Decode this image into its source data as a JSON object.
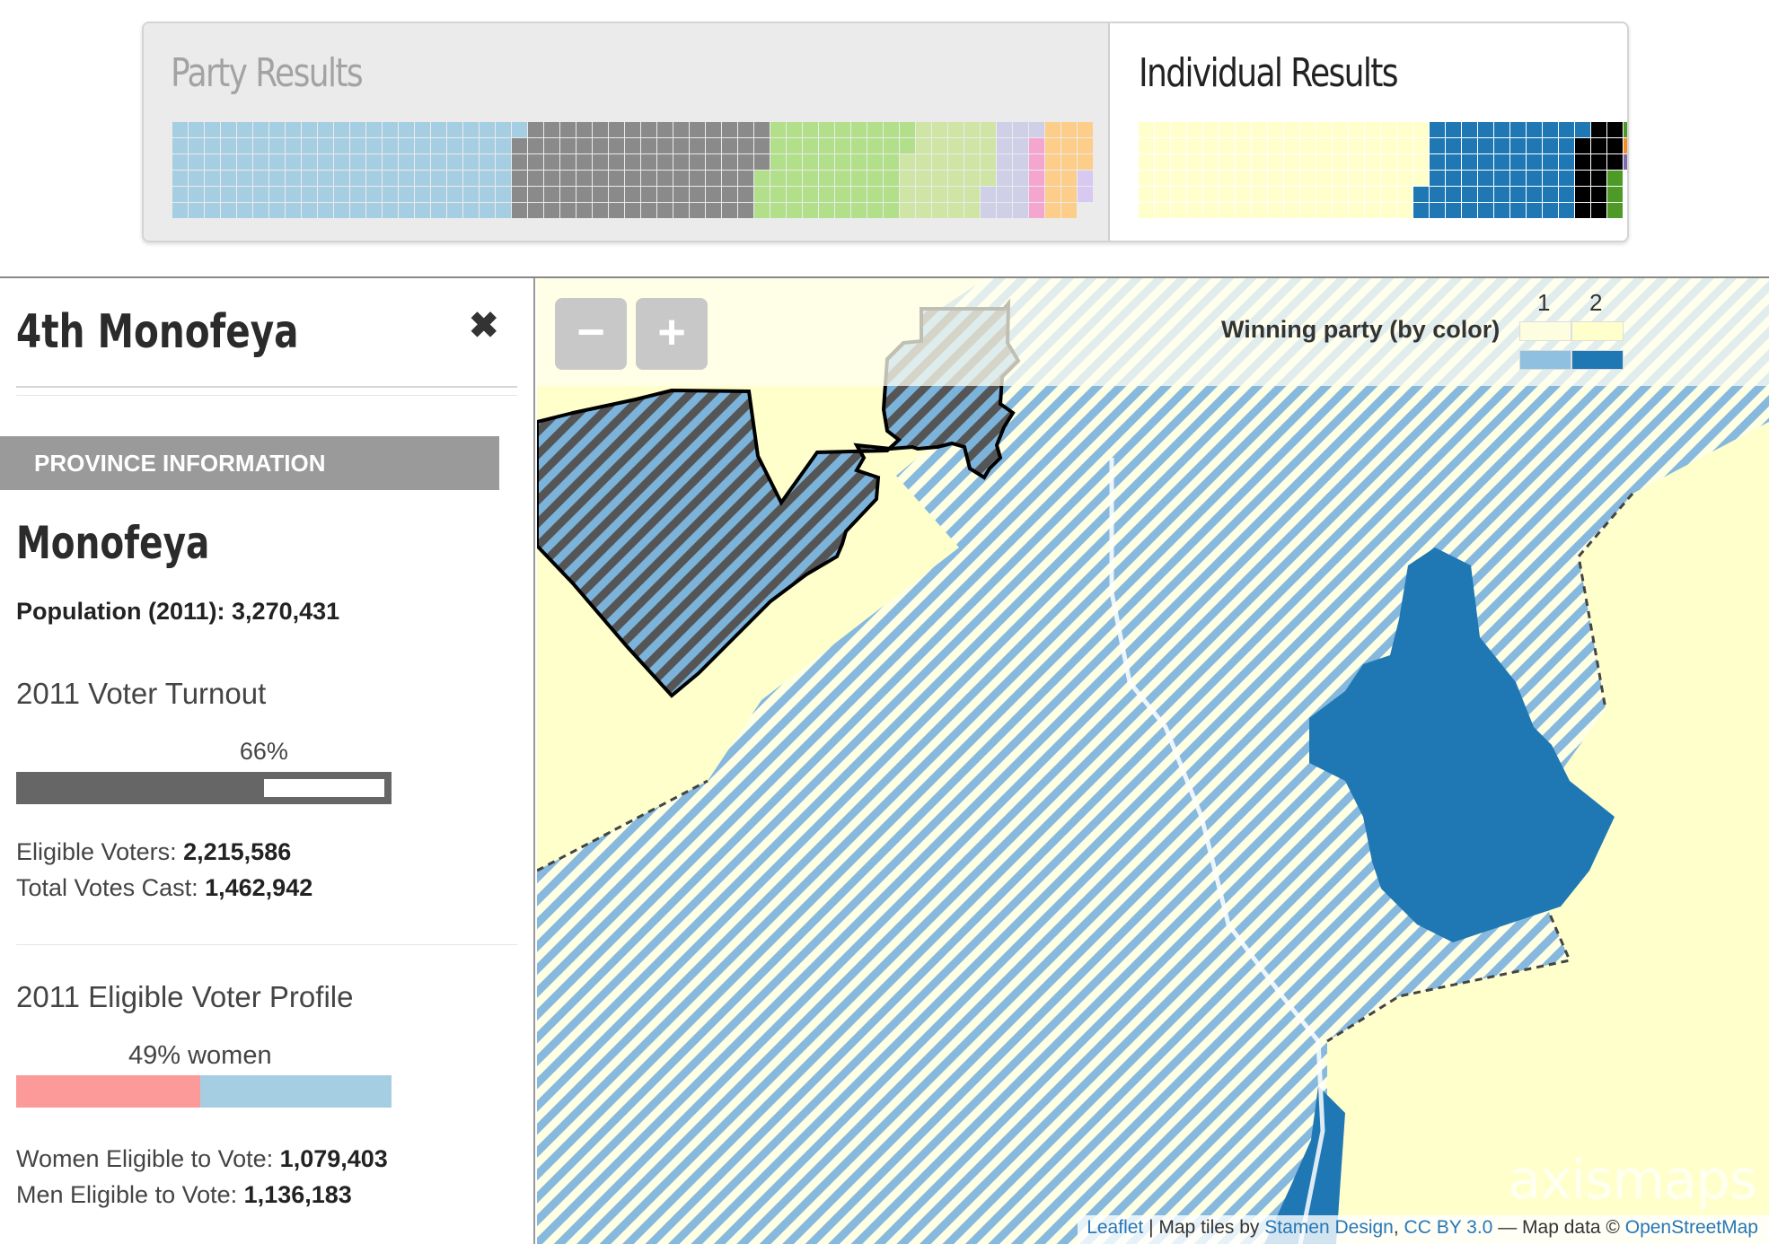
{
  "results": {
    "party_title": "Party Results",
    "individual_title": "Individual Results",
    "party_waffle": [
      {
        "color": "#a6cee3",
        "count": 127
      },
      {
        "color": "#8a8a8a",
        "count": 92
      },
      {
        "color": "#b2df8a",
        "count": 53
      },
      {
        "color": "#cfe5a5",
        "count": 32
      },
      {
        "color": "#cfcfe8",
        "count": 15
      },
      {
        "color": "#f4a6d0",
        "count": 5
      },
      {
        "color": "#fdcd8a",
        "count": 15
      },
      {
        "color": "#d7c9f0",
        "count": 2
      }
    ],
    "individual_waffle": [
      {
        "color": "#ffffcc",
        "count": 106
      },
      {
        "color": "#1f78b4",
        "count": 57
      },
      {
        "color": "#000000",
        "count": 14
      },
      {
        "color": "#4d9a26",
        "count": 4
      },
      {
        "color": "#f58e22",
        "count": 1
      },
      {
        "color": "#7f6cb0",
        "count": 1
      }
    ]
  },
  "sidebar": {
    "district_title": "4th Monofeya",
    "close_label": "✖",
    "section_header": "PROVINCE INFORMATION",
    "province_name": "Monofeya",
    "population_label": "Population (2011): 3,270,431",
    "turnout_heading": "2011 Voter Turnout",
    "turnout_fraction": 0.66,
    "turnout_pct_label": "66%",
    "eligible_voters_label": "Eligible Voters: ",
    "eligible_voters_value": "2,215,586",
    "votes_cast_label": "Total Votes Cast: ",
    "votes_cast_value": "1,462,942",
    "profile_heading": "2011 Eligible Voter Profile",
    "women_fraction": 0.49,
    "women_pct_label": "49% women",
    "women_label": "Women Eligible to Vote: ",
    "women_value": "1,079,403",
    "men_label": "Men Eligible to Vote: ",
    "men_value": "1,136,183"
  },
  "map": {
    "zoom_out_label": "−",
    "zoom_in_label": "+",
    "legend_title": "Winning party (by color)",
    "legend_columns": [
      "1",
      "2"
    ],
    "legend_colors": {
      "row1": [
        "#fdfde0",
        "#ffffcc"
      ],
      "row2": [
        "#8fc0e0",
        "#1f78b4"
      ]
    },
    "colors": {
      "background": "#ffffcc",
      "hatch_light": "#ffffe8",
      "hatch_blue": "#86b9dd",
      "selected_dark": "#555555",
      "solid_blue": "#1f78b4"
    },
    "attribution": {
      "leaflet": "Leaflet",
      "sep1": " | Map tiles by ",
      "stamen": "Stamen Design",
      "comma": ", ",
      "license": "CC BY 3.0",
      "sep2": " — Map data © ",
      "osm": "OpenStreetMap"
    },
    "watermark": "axismaps"
  }
}
